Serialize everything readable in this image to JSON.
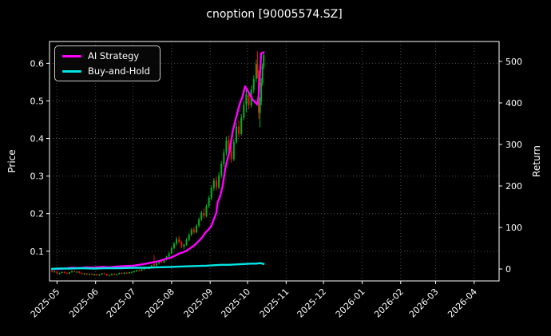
{
  "header": {
    "title": "cnoption [90005574.SZ]"
  },
  "legend": {
    "items": [
      {
        "label": "AI Strategy",
        "color": "#ff00ff"
      },
      {
        "label": "Buy-and-Hold",
        "color": "#00e5e5"
      }
    ]
  },
  "chart_data": {
    "type": "candlestick",
    "title": "cnoption [90005574.SZ]",
    "xlabel": "",
    "left_axis": {
      "label": "Price",
      "domain": [
        0.021,
        0.658
      ],
      "ticks": [
        {
          "value": 0.1,
          "label": "0.1"
        },
        {
          "value": 0.2,
          "label": "0.2"
        },
        {
          "value": 0.3,
          "label": "0.3"
        },
        {
          "value": 0.4,
          "label": "0.4"
        },
        {
          "value": 0.5,
          "label": "0.5"
        },
        {
          "value": 0.6,
          "label": "0.6"
        }
      ]
    },
    "right_axis": {
      "label": "Return",
      "domain": [
        -28.8,
        548
      ],
      "ticks": [
        {
          "value": 0,
          "label": "0"
        },
        {
          "value": 100,
          "label": "100"
        },
        {
          "value": 200,
          "label": "200"
        },
        {
          "value": 300,
          "label": "300"
        },
        {
          "value": 400,
          "label": "400"
        },
        {
          "value": 500,
          "label": "500"
        }
      ]
    },
    "x_axis": {
      "domain_days": [
        -6,
        355
      ],
      "grid": true,
      "tick_label_rotation": 45,
      "ticks": [
        {
          "day": 0,
          "label": "2025-05"
        },
        {
          "day": 31,
          "label": "2025-06"
        },
        {
          "day": 61,
          "label": "2025-07"
        },
        {
          "day": 92,
          "label": "2025-08"
        },
        {
          "day": 123,
          "label": "2025-09"
        },
        {
          "day": 153,
          "label": "2025-10"
        },
        {
          "day": 184,
          "label": "2025-11"
        },
        {
          "day": 214,
          "label": "2025-12"
        },
        {
          "day": 245,
          "label": "2026-01"
        },
        {
          "day": 276,
          "label": "2026-02"
        },
        {
          "day": 304,
          "label": "2026-03"
        },
        {
          "day": 335,
          "label": "2026-04"
        }
      ]
    },
    "colors": {
      "background": "#000000",
      "text": "#ffffff",
      "grid": "#4d4d4d",
      "spine": "#ffffff",
      "candle_up": "#00b322",
      "candle_down": "#ee1100"
    },
    "candles_ohlc_by_day": [
      [
        -4,
        0.048,
        0.05,
        0.044,
        0.045
      ],
      [
        -2,
        0.045,
        0.049,
        0.043,
        0.046
      ],
      [
        0,
        0.046,
        0.047,
        0.04,
        0.041
      ],
      [
        2,
        0.041,
        0.043,
        0.038,
        0.042
      ],
      [
        4,
        0.042,
        0.046,
        0.041,
        0.045
      ],
      [
        6,
        0.045,
        0.046,
        0.041,
        0.042
      ],
      [
        8,
        0.042,
        0.044,
        0.039,
        0.04
      ],
      [
        10,
        0.04,
        0.045,
        0.04,
        0.044
      ],
      [
        12,
        0.044,
        0.048,
        0.043,
        0.047
      ],
      [
        14,
        0.047,
        0.049,
        0.044,
        0.045
      ],
      [
        16,
        0.045,
        0.047,
        0.042,
        0.046
      ],
      [
        18,
        0.046,
        0.047,
        0.041,
        0.042
      ],
      [
        20,
        0.042,
        0.043,
        0.038,
        0.039
      ],
      [
        22,
        0.039,
        0.042,
        0.037,
        0.041
      ],
      [
        24,
        0.041,
        0.042,
        0.037,
        0.038
      ],
      [
        26,
        0.038,
        0.041,
        0.036,
        0.04
      ],
      [
        28,
        0.04,
        0.041,
        0.036,
        0.037
      ],
      [
        30,
        0.037,
        0.04,
        0.035,
        0.039
      ],
      [
        32,
        0.039,
        0.04,
        0.035,
        0.036
      ],
      [
        34,
        0.036,
        0.039,
        0.034,
        0.038
      ],
      [
        36,
        0.038,
        0.042,
        0.037,
        0.041
      ],
      [
        38,
        0.041,
        0.043,
        0.038,
        0.039
      ],
      [
        40,
        0.039,
        0.04,
        0.034,
        0.035
      ],
      [
        42,
        0.035,
        0.038,
        0.033,
        0.037
      ],
      [
        44,
        0.037,
        0.041,
        0.036,
        0.04
      ],
      [
        46,
        0.04,
        0.041,
        0.036,
        0.037
      ],
      [
        48,
        0.037,
        0.04,
        0.035,
        0.039
      ],
      [
        50,
        0.039,
        0.043,
        0.038,
        0.042
      ],
      [
        52,
        0.042,
        0.044,
        0.039,
        0.04
      ],
      [
        54,
        0.04,
        0.044,
        0.039,
        0.043
      ],
      [
        56,
        0.043,
        0.045,
        0.04,
        0.041
      ],
      [
        58,
        0.041,
        0.045,
        0.04,
        0.044
      ],
      [
        60,
        0.044,
        0.046,
        0.041,
        0.045
      ],
      [
        62,
        0.045,
        0.048,
        0.043,
        0.047
      ],
      [
        64,
        0.047,
        0.051,
        0.045,
        0.05
      ],
      [
        66,
        0.05,
        0.052,
        0.046,
        0.048
      ],
      [
        68,
        0.048,
        0.053,
        0.047,
        0.052
      ],
      [
        70,
        0.052,
        0.057,
        0.05,
        0.056
      ],
      [
        72,
        0.056,
        0.058,
        0.052,
        0.053
      ],
      [
        74,
        0.053,
        0.059,
        0.052,
        0.058
      ],
      [
        76,
        0.058,
        0.064,
        0.056,
        0.062
      ],
      [
        78,
        0.066,
        0.09,
        0.06,
        0.062
      ],
      [
        80,
        0.062,
        0.07,
        0.06,
        0.068
      ],
      [
        82,
        0.068,
        0.075,
        0.065,
        0.073
      ],
      [
        84,
        0.073,
        0.078,
        0.068,
        0.07
      ],
      [
        86,
        0.07,
        0.08,
        0.069,
        0.078
      ],
      [
        88,
        0.078,
        0.088,
        0.075,
        0.086
      ],
      [
        90,
        0.086,
        0.098,
        0.083,
        0.094
      ],
      [
        92,
        0.094,
        0.112,
        0.092,
        0.108
      ],
      [
        94,
        0.108,
        0.125,
        0.105,
        0.12
      ],
      [
        96,
        0.12,
        0.138,
        0.115,
        0.132
      ],
      [
        98,
        0.132,
        0.14,
        0.12,
        0.124
      ],
      [
        100,
        0.124,
        0.128,
        0.108,
        0.112
      ],
      [
        102,
        0.112,
        0.12,
        0.105,
        0.118
      ],
      [
        104,
        0.118,
        0.135,
        0.115,
        0.13
      ],
      [
        106,
        0.13,
        0.148,
        0.126,
        0.144
      ],
      [
        108,
        0.144,
        0.162,
        0.14,
        0.158
      ],
      [
        110,
        0.158,
        0.165,
        0.146,
        0.15
      ],
      [
        112,
        0.15,
        0.172,
        0.148,
        0.168
      ],
      [
        114,
        0.168,
        0.19,
        0.163,
        0.185
      ],
      [
        116,
        0.185,
        0.208,
        0.18,
        0.202
      ],
      [
        118,
        0.202,
        0.215,
        0.188,
        0.194
      ],
      [
        120,
        0.194,
        0.225,
        0.19,
        0.22
      ],
      [
        122,
        0.22,
        0.248,
        0.215,
        0.242
      ],
      [
        124,
        0.242,
        0.275,
        0.235,
        0.268
      ],
      [
        126,
        0.268,
        0.295,
        0.26,
        0.288
      ],
      [
        128,
        0.288,
        0.298,
        0.262,
        0.27
      ],
      [
        130,
        0.27,
        0.31,
        0.265,
        0.302
      ],
      [
        132,
        0.302,
        0.34,
        0.295,
        0.332
      ],
      [
        134,
        0.332,
        0.372,
        0.325,
        0.362
      ],
      [
        136,
        0.362,
        0.405,
        0.355,
        0.395
      ],
      [
        138,
        0.395,
        0.408,
        0.358,
        0.368
      ],
      [
        140,
        0.368,
        0.38,
        0.335,
        0.345
      ],
      [
        142,
        0.345,
        0.398,
        0.34,
        0.39
      ],
      [
        144,
        0.39,
        0.442,
        0.385,
        0.432
      ],
      [
        146,
        0.432,
        0.448,
        0.402,
        0.412
      ],
      [
        148,
        0.412,
        0.465,
        0.408,
        0.455
      ],
      [
        150,
        0.455,
        0.5,
        0.448,
        0.49
      ],
      [
        152,
        0.49,
        0.53,
        0.47,
        0.518
      ],
      [
        154,
        0.518,
        0.525,
        0.478,
        0.488
      ],
      [
        156,
        0.488,
        0.54,
        0.482,
        0.53
      ],
      [
        158,
        0.53,
        0.568,
        0.52,
        0.558
      ],
      [
        160,
        0.558,
        0.61,
        0.55,
        0.598
      ],
      [
        161,
        0.598,
        0.632,
        0.56,
        0.572
      ],
      [
        162,
        0.572,
        0.58,
        0.452,
        0.468
      ],
      [
        163,
        0.468,
        0.51,
        0.43,
        0.498
      ],
      [
        164,
        0.498,
        0.56,
        0.488,
        0.548
      ],
      [
        165,
        0.548,
        0.6,
        0.54,
        0.592
      ],
      [
        166,
        0.592,
        0.628,
        0.585,
        0.622
      ]
    ],
    "series": [
      {
        "name": "AI Strategy",
        "axis": "right",
        "color": "#ff00ff",
        "points": [
          [
            -4,
            0
          ],
          [
            0,
            0
          ],
          [
            6,
            1
          ],
          [
            12,
            3
          ],
          [
            18,
            2
          ],
          [
            24,
            4
          ],
          [
            30,
            3
          ],
          [
            36,
            5
          ],
          [
            42,
            4
          ],
          [
            48,
            6
          ],
          [
            54,
            7
          ],
          [
            61,
            8
          ],
          [
            66,
            10
          ],
          [
            70,
            12
          ],
          [
            75,
            15
          ],
          [
            79,
            17
          ],
          [
            83,
            20
          ],
          [
            87,
            24
          ],
          [
            91,
            27
          ],
          [
            94,
            31
          ],
          [
            98,
            37
          ],
          [
            101,
            40
          ],
          [
            104,
            44
          ],
          [
            107,
            50
          ],
          [
            110,
            56
          ],
          [
            113,
            65
          ],
          [
            116,
            74
          ],
          [
            119,
            87
          ],
          [
            122,
            96
          ],
          [
            124,
            104
          ],
          [
            126,
            120
          ],
          [
            128,
            136
          ],
          [
            129,
            160
          ],
          [
            131,
            175
          ],
          [
            133,
            200
          ],
          [
            135,
            240
          ],
          [
            137,
            265
          ],
          [
            139,
            290
          ],
          [
            141,
            330
          ],
          [
            143,
            355
          ],
          [
            145,
            378
          ],
          [
            147,
            400
          ],
          [
            149,
            415
          ],
          [
            151,
            440
          ],
          [
            153,
            430
          ],
          [
            155,
            420
          ],
          [
            157,
            408
          ],
          [
            159,
            402
          ],
          [
            161,
            396
          ],
          [
            162,
            420
          ],
          [
            163,
            470
          ],
          [
            164,
            520
          ],
          [
            166,
            522
          ]
        ]
      },
      {
        "name": "Buy-and-Hold",
        "axis": "right",
        "color": "#00e5e5",
        "points": [
          [
            -4,
            0
          ],
          [
            0,
            1
          ],
          [
            10,
            1
          ],
          [
            20,
            2
          ],
          [
            30,
            1
          ],
          [
            40,
            2
          ],
          [
            50,
            2
          ],
          [
            61,
            3
          ],
          [
            70,
            3
          ],
          [
            80,
            4
          ],
          [
            92,
            5
          ],
          [
            100,
            6
          ],
          [
            110,
            7
          ],
          [
            120,
            8
          ],
          [
            126,
            9
          ],
          [
            132,
            10
          ],
          [
            138,
            10
          ],
          [
            144,
            11
          ],
          [
            150,
            12
          ],
          [
            156,
            13
          ],
          [
            160,
            13
          ],
          [
            163,
            14
          ],
          [
            165,
            13
          ],
          [
            166,
            12
          ]
        ]
      }
    ]
  }
}
